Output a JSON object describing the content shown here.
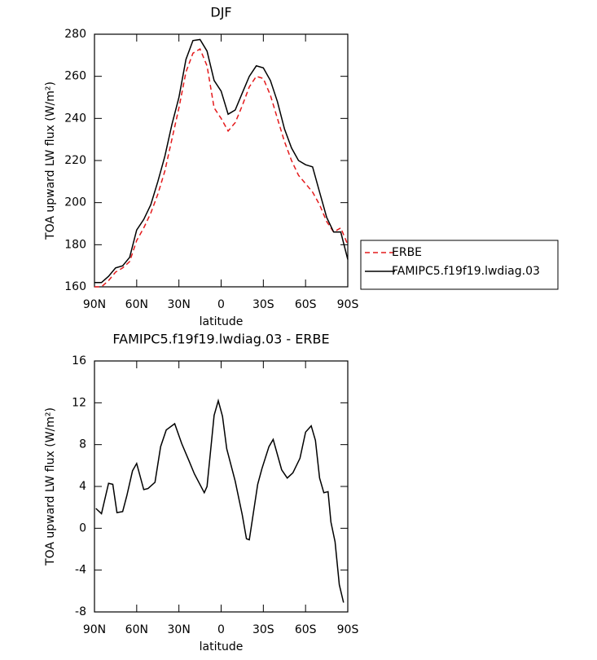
{
  "chart_data": [
    {
      "type": "line",
      "title": "DJF",
      "xlabel": "latitude",
      "ylabel": "TOA upward LW flux (W/m²)",
      "x": [
        90,
        85,
        80,
        75,
        70,
        65,
        60,
        55,
        50,
        45,
        40,
        35,
        30,
        25,
        20,
        15,
        10,
        5,
        0,
        -5,
        -10,
        -15,
        -20,
        -25,
        -30,
        -35,
        -40,
        -45,
        -50,
        -55,
        -60,
        -65,
        -70,
        -75,
        -80,
        -85,
        -90
      ],
      "series": [
        {
          "name": "ERBE",
          "color": "#e41a1c",
          "dash": "dashed",
          "values": [
            160,
            160,
            163,
            167,
            169,
            172,
            182,
            188,
            195,
            204,
            215,
            230,
            245,
            262,
            271,
            273,
            265,
            245,
            240,
            234,
            238,
            246,
            255,
            260,
            259,
            251,
            240,
            229,
            220,
            213,
            209,
            205,
            199,
            191,
            186,
            188,
            180
          ]
        },
        {
          "name": "FAMIPC5.f19f19.lwdiag.03",
          "color": "#000000",
          "dash": "solid",
          "values": [
            162,
            162,
            165,
            169,
            170,
            174,
            187,
            192,
            199,
            210,
            222,
            237,
            250,
            268,
            277,
            277.5,
            272,
            258,
            253,
            242,
            244,
            252,
            260,
            265,
            264,
            258,
            248,
            235,
            226,
            220,
            218,
            217,
            205,
            193,
            186,
            186,
            173
          ]
        }
      ],
      "xlim": [
        90,
        -90
      ],
      "ylim": [
        160,
        280
      ],
      "xticks": [
        {
          "value": 90,
          "label": "90N"
        },
        {
          "value": 60,
          "label": "60N"
        },
        {
          "value": 30,
          "label": "30N"
        },
        0,
        {
          "value": -30,
          "label": "30S"
        },
        {
          "value": -60,
          "label": "60S"
        },
        {
          "value": -90,
          "label": "90S"
        }
      ],
      "yticks": [
        160,
        180,
        200,
        220,
        240,
        260,
        280
      ],
      "legend": "outside-right"
    },
    {
      "type": "line",
      "title": "FAMIPC5.f19f19.lwdiag.03 - ERBE",
      "xlabel": "latitude",
      "ylabel": "TOA upward LW flux (W/m²)",
      "x": [
        89,
        85,
        80,
        77,
        74,
        70,
        67,
        63,
        60,
        55,
        52,
        47,
        43,
        39,
        33,
        28,
        23,
        19,
        12,
        10,
        5,
        2,
        -1,
        -4,
        -10,
        -15,
        -18,
        -20,
        -26,
        -29,
        -34,
        -37,
        -43,
        -47,
        -51,
        -56,
        -60,
        -64,
        -67,
        -70,
        -73,
        -76,
        -78,
        -81,
        -84,
        -87
      ],
      "values": [
        1.9,
        1.4,
        4.3,
        4.2,
        1.5,
        1.6,
        3.1,
        5.5,
        6.2,
        3.7,
        3.8,
        4.4,
        7.8,
        9.4,
        10.0,
        8.1,
        6.5,
        5.2,
        3.4,
        4.0,
        10.8,
        12.2,
        10.7,
        7.6,
        4.5,
        1.3,
        -1.0,
        -1.1,
        4.2,
        5.7,
        7.8,
        8.5,
        5.6,
        4.8,
        5.3,
        6.7,
        9.2,
        9.8,
        8.4,
        4.8,
        3.4,
        3.5,
        0.6,
        -1.3,
        -5.4,
        -7.1
      ],
      "color": "#000000",
      "xlim": [
        90,
        -90
      ],
      "ylim": [
        -8,
        16
      ],
      "xticks": [
        {
          "value": 90,
          "label": "90N"
        },
        {
          "value": 60,
          "label": "60N"
        },
        {
          "value": 30,
          "label": "30N"
        },
        0,
        {
          "value": -30,
          "label": "30S"
        },
        {
          "value": -60,
          "label": "60S"
        },
        {
          "value": -90,
          "label": "90S"
        }
      ],
      "yticks": [
        -8,
        -4,
        0,
        4,
        8,
        12,
        16
      ]
    }
  ]
}
